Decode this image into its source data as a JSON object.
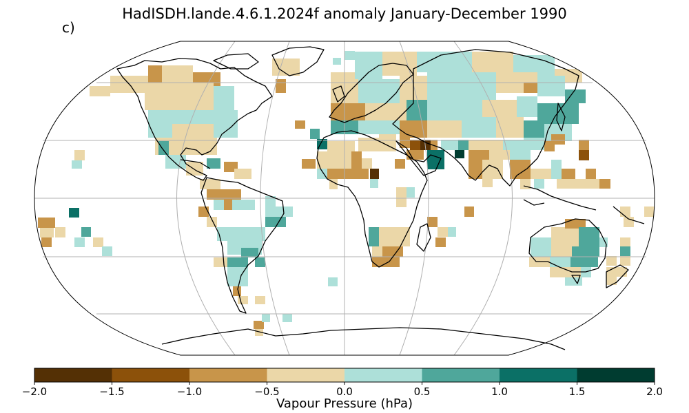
{
  "figure": {
    "title": "HadISDH.lande.4.6.1.2024f anomaly January-December 1990",
    "panel_label": "c)"
  },
  "colorbar": {
    "label": "Vapour Pressure (hPa)",
    "ticks": [
      "−2.0",
      "−1.5",
      "−1.0",
      "−0.5",
      "0.0",
      "0.5",
      "1.0",
      "1.5",
      "2.0"
    ],
    "min": -2.0,
    "max": 2.0,
    "colors": [
      "#543005",
      "#8c510a",
      "#c8954a",
      "#ebd7a8",
      "#ade0d9",
      "#4fa79b",
      "#0b7066",
      "#003c30"
    ]
  },
  "map": {
    "projection": "Robinson",
    "gridlines": true,
    "coastline_color": "#000000",
    "gridline_color": "#b0b0b0"
  }
}
